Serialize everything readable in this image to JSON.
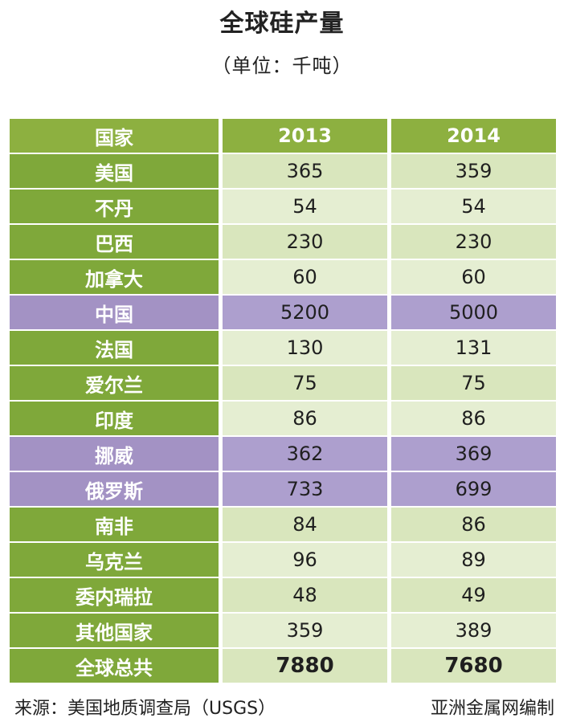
{
  "title": "全球硅产量",
  "unit_label": "（单位：千吨）",
  "chart_data": {
    "type": "table",
    "title": "全球硅产量",
    "columns": [
      "国家",
      "2013",
      "2014"
    ],
    "rows": [
      {
        "country": "美国",
        "v2013": "365",
        "v2014": "359",
        "highlight": false
      },
      {
        "country": "不丹",
        "v2013": "54",
        "v2014": "54",
        "highlight": false
      },
      {
        "country": "巴西",
        "v2013": "230",
        "v2014": "230",
        "highlight": false
      },
      {
        "country": "加拿大",
        "v2013": "60",
        "v2014": "60",
        "highlight": false
      },
      {
        "country": "中国",
        "v2013": "5200",
        "v2014": "5000",
        "highlight": true
      },
      {
        "country": "法国",
        "v2013": "130",
        "v2014": "131",
        "highlight": false
      },
      {
        "country": "爱尔兰",
        "v2013": "75",
        "v2014": "75",
        "highlight": false
      },
      {
        "country": "印度",
        "v2013": "86",
        "v2014": "86",
        "highlight": false
      },
      {
        "country": "挪威",
        "v2013": "362",
        "v2014": "369",
        "highlight": true
      },
      {
        "country": "俄罗斯",
        "v2013": "733",
        "v2014": "699",
        "highlight": true
      },
      {
        "country": "南非",
        "v2013": "84",
        "v2014": "86",
        "highlight": false
      },
      {
        "country": "乌克兰",
        "v2013": "96",
        "v2014": "89",
        "highlight": false
      },
      {
        "country": "委内瑞拉",
        "v2013": "48",
        "v2014": "49",
        "highlight": false
      },
      {
        "country": "其他国家",
        "v2013": "359",
        "v2014": "389",
        "highlight": false
      }
    ],
    "total": {
      "label": "全球总共",
      "v2013": "7880",
      "v2014": "7680"
    }
  },
  "source": "来源：美国地质调查局（USGS）",
  "credit": "亚洲金属网编制",
  "colors": {
    "header_green": "#8db040",
    "country_green": "#7fa83a",
    "value_green": "#d9e6bd",
    "highlight_purple": "#a392c4"
  }
}
